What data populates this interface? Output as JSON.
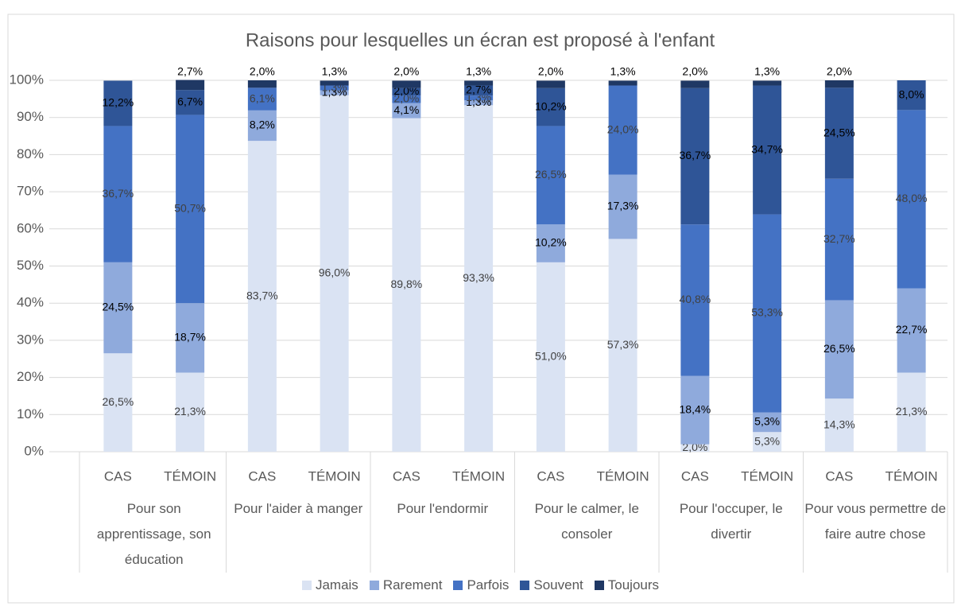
{
  "chart_data": {
    "type": "stacked_bar",
    "title": "Raisons pour lesquelles un écran est proposé à l'enfant",
    "categories": [
      "CAS",
      "TÉMOIN",
      "CAS",
      "TÉMOIN",
      "CAS",
      "TÉMOIN",
      "CAS",
      "TÉMOIN",
      "CAS",
      "TÉMOIN",
      "CAS",
      "TÉMOIN"
    ],
    "groups": [
      "Pour son apprentissage, son éducation",
      "Pour l'aider à manger",
      "Pour l'endormir",
      "Pour le calmer, le consoler",
      "Pour l'occuper, le divertir",
      "Pour vous permettre de faire autre chose"
    ],
    "series": [
      {
        "name": "Jamais",
        "color": "#dae3f3",
        "values": [
          26.5,
          21.3,
          83.7,
          96.0,
          89.8,
          93.3,
          51.0,
          57.3,
          2.0,
          5.3,
          14.3,
          21.3
        ],
        "value_labels": [
          "26,5%",
          "21,3%",
          "83,7%",
          "96,0%",
          "89,8%",
          "93,3%",
          "51,0%",
          "57,3%",
          "2,0%",
          "5,3%",
          "14,3%",
          "21,3%"
        ]
      },
      {
        "name": "Rarement",
        "color": "#8faadc",
        "values": [
          24.5,
          18.7,
          8.2,
          1.3,
          4.1,
          1.3,
          10.2,
          17.3,
          18.4,
          5.3,
          26.5,
          22.7
        ],
        "value_labels": [
          "24,5%",
          "18,7%",
          "8,2%",
          "1,3%",
          "4,1%",
          "1,3%",
          "10,2%",
          "17,3%",
          "18,4%",
          "5,3%",
          "26,5%",
          "22,7%"
        ]
      },
      {
        "name": "Parfois",
        "color": "#4472c4",
        "values": [
          36.7,
          50.7,
          6.1,
          1.3,
          2.0,
          1.3,
          26.5,
          24.0,
          40.8,
          53.3,
          32.7,
          48.0
        ],
        "value_labels": [
          "36,7%",
          "50,7%",
          "6,1%",
          "1,3%",
          "2,0%",
          "1,3%",
          "26,5%",
          "24,0%",
          "40,8%",
          "53,3%",
          "32,7%",
          "48,0%"
        ]
      },
      {
        "name": "Souvent",
        "color": "#2f5597",
        "values": [
          12.2,
          6.7,
          0,
          0,
          2.0,
          2.7,
          10.2,
          0,
          36.7,
          34.7,
          24.5,
          8.0
        ],
        "value_labels": [
          "12,2%",
          "6,7%",
          null,
          null,
          "2,0%",
          "2,7%",
          "10,2%",
          null,
          "36,7%",
          "34,7%",
          "24,5%",
          "8,0%"
        ]
      },
      {
        "name": "Toujours",
        "color": "#1f3864",
        "values": [
          0,
          2.7,
          2.0,
          1.3,
          2.0,
          1.3,
          2.0,
          1.3,
          2.0,
          1.3,
          2.0,
          0
        ],
        "value_labels": [
          null,
          "2,7%",
          "2,0%",
          "1,3%",
          "2,0%",
          "1,3%",
          "2,0%",
          "1,3%",
          "2,0%",
          "1,3%",
          "2,0%",
          null
        ]
      }
    ],
    "ylim": [
      0,
      100
    ],
    "yticks": [
      {
        "value": 0,
        "label": "0%"
      },
      {
        "value": 10,
        "label": "10%"
      },
      {
        "value": 20,
        "label": "20%"
      },
      {
        "value": 30,
        "label": "30%"
      },
      {
        "value": 40,
        "label": "40%"
      },
      {
        "value": 50,
        "label": "50%"
      },
      {
        "value": 60,
        "label": "60%"
      },
      {
        "value": 70,
        "label": "70%"
      },
      {
        "value": 80,
        "label": "80%"
      },
      {
        "value": 90,
        "label": "90%"
      },
      {
        "value": 100,
        "label": "100%"
      }
    ],
    "grid": true,
    "legend": "bottom"
  }
}
